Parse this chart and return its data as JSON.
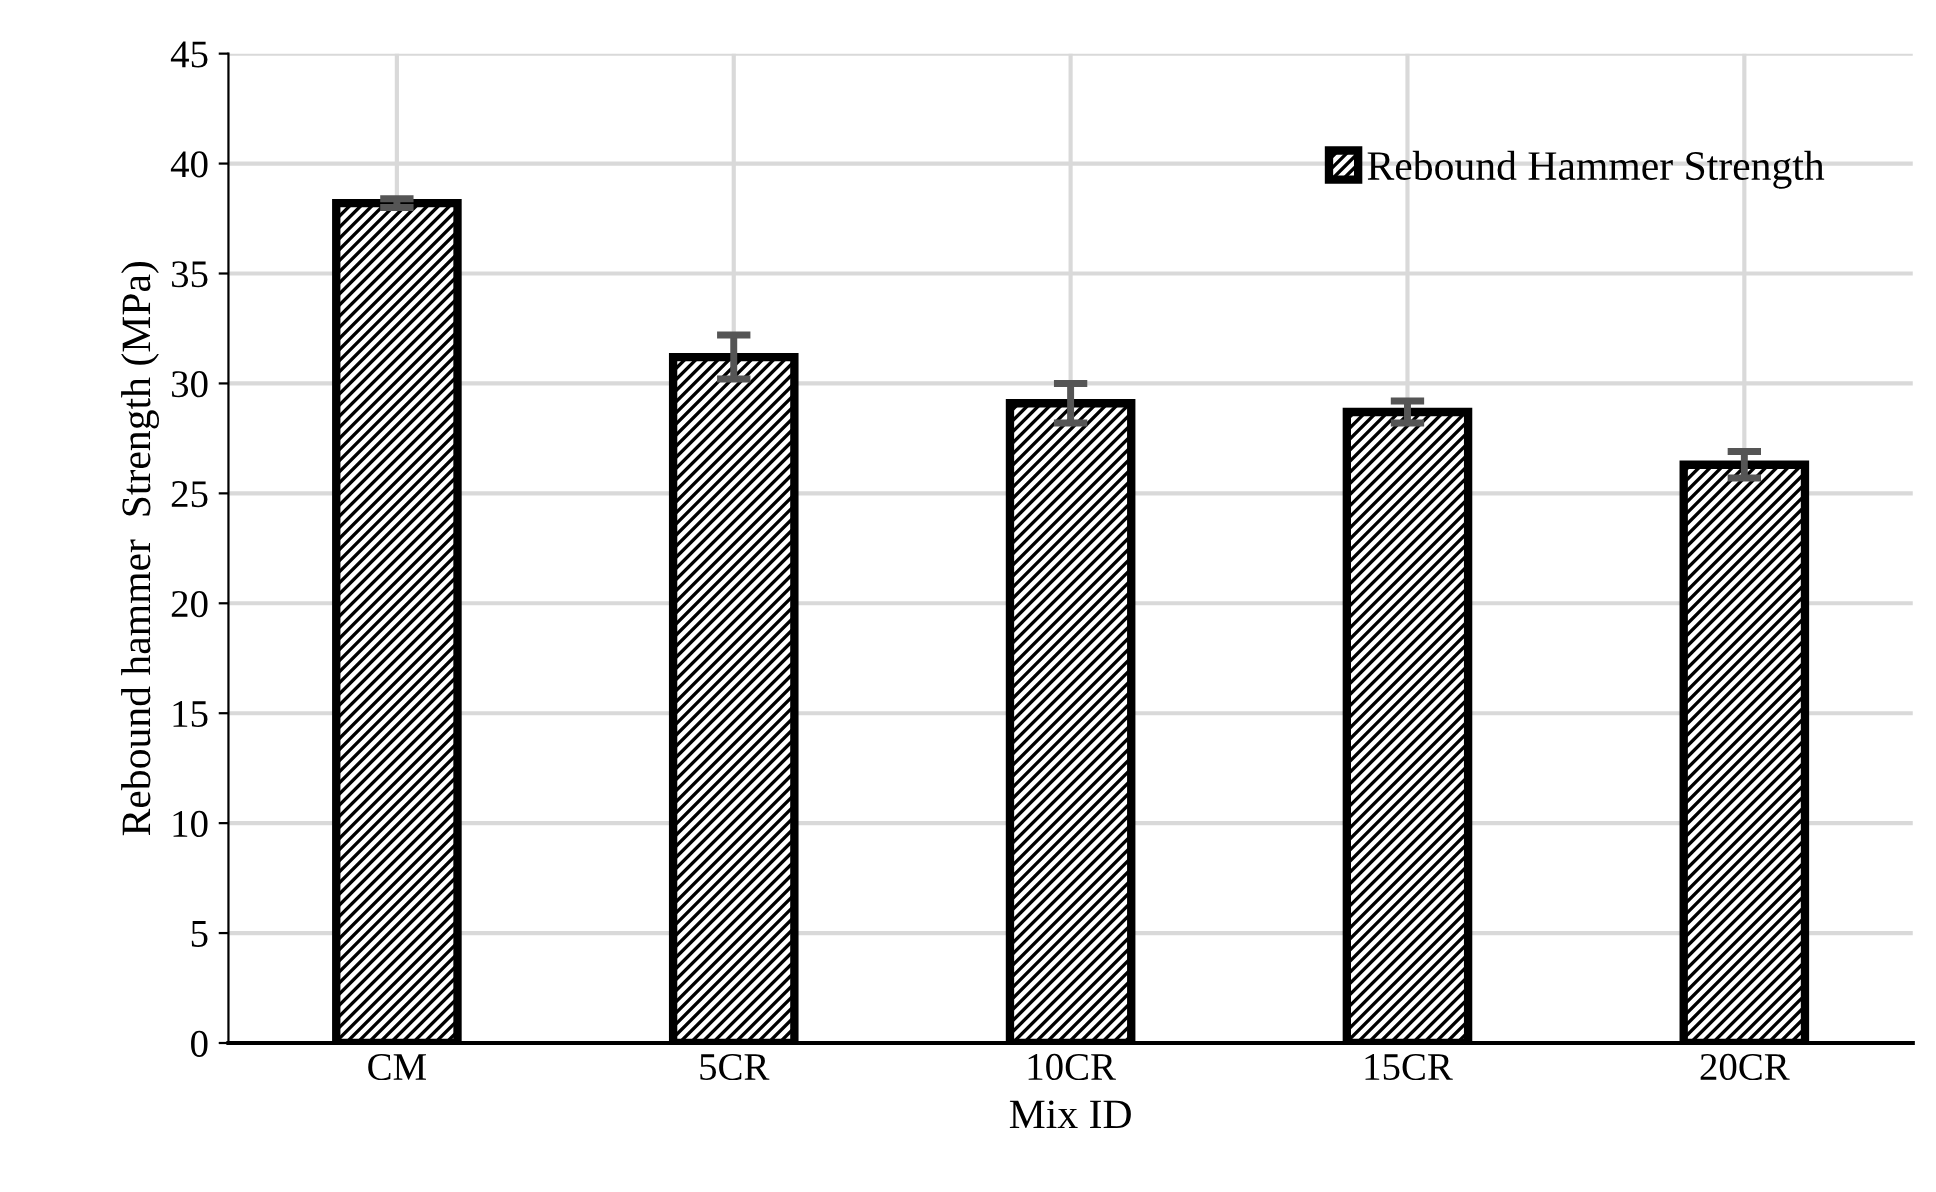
{
  "chart_data": {
    "type": "bar",
    "xlabel": "Mix ID",
    "ylabel": "Rebound hammer  Strength (MPa)",
    "categories": [
      "CM",
      "5CR",
      "10CR",
      "15CR",
      "20CR"
    ],
    "series": [
      {
        "name": "Rebound Hammer Strength",
        "color": "#000000",
        "values": [
          38.2,
          31.2,
          29.1,
          28.7,
          26.3
        ],
        "errors": [
          0.2,
          1.0,
          0.9,
          0.5,
          0.6
        ]
      }
    ],
    "ylim": [
      0,
      45
    ],
    "yticks": [
      0,
      5,
      10,
      15,
      20,
      25,
      30,
      35,
      40,
      45
    ],
    "grid": true,
    "legend": "top right"
  }
}
